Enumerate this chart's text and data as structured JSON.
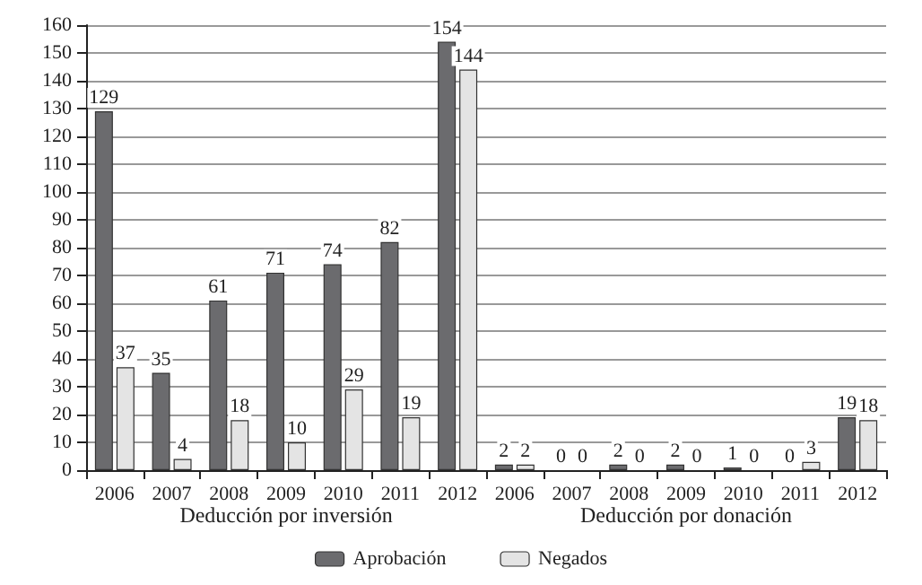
{
  "chart_data": {
    "type": "bar",
    "categories": [
      "2006",
      "2007",
      "2008",
      "2009",
      "2010",
      "2011",
      "2012",
      "2006",
      "2007",
      "2008",
      "2009",
      "2010",
      "2011",
      "2012"
    ],
    "series": [
      {
        "name": "Aprobación",
        "color": "#6b6b6e",
        "values": [
          129,
          35,
          61,
          71,
          74,
          82,
          154,
          2,
          0,
          2,
          2,
          1,
          0,
          19
        ]
      },
      {
        "name": "Negados",
        "color": "#e4e4e4",
        "values": [
          37,
          4,
          18,
          10,
          29,
          19,
          144,
          2,
          0,
          0,
          0,
          0,
          3,
          18
        ]
      }
    ],
    "annotations": [
      "Deducción por inversión",
      "Deducción por donación"
    ],
    "ylim": [
      0,
      160
    ],
    "yticks": [
      0,
      10,
      20,
      30,
      40,
      50,
      60,
      70,
      80,
      90,
      100,
      110,
      120,
      130,
      140,
      150,
      160
    ],
    "grid": "y",
    "legend": "bottom",
    "data_labels": true
  }
}
